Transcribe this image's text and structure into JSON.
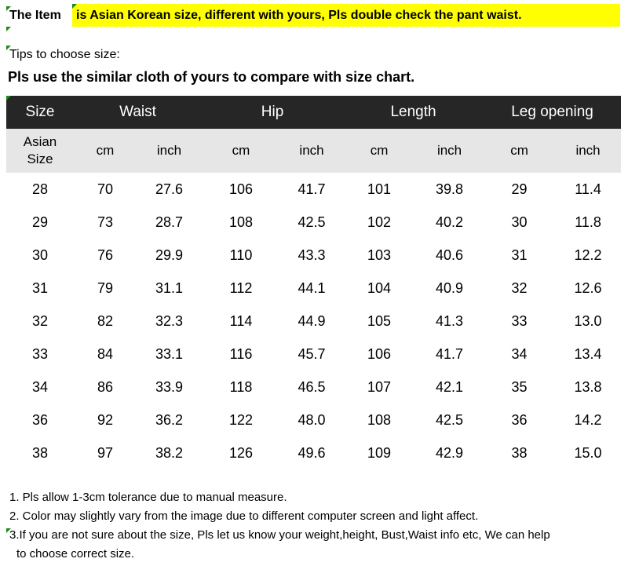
{
  "banner": {
    "label": "The Item",
    "note": "is Asian Korean size, different with yours, Pls double check the pant waist."
  },
  "tips": {
    "label": "Tips to choose size:",
    "main": "Pls use the similar cloth of yours to compare with size chart."
  },
  "table": {
    "headers": [
      "Size",
      "Waist",
      "Hip",
      "Length",
      "Leg opening"
    ],
    "subheaders": {
      "asian_size_line1": "Asian",
      "asian_size_line2": "Size",
      "cm": "cm",
      "inch": "inch"
    },
    "rows": [
      [
        "28",
        "70",
        "27.6",
        "106",
        "41.7",
        "101",
        "39.8",
        "29",
        "11.4"
      ],
      [
        "29",
        "73",
        "28.7",
        "108",
        "42.5",
        "102",
        "40.2",
        "30",
        "11.8"
      ],
      [
        "30",
        "76",
        "29.9",
        "110",
        "43.3",
        "103",
        "40.6",
        "31",
        "12.2"
      ],
      [
        "31",
        "79",
        "31.1",
        "112",
        "44.1",
        "104",
        "40.9",
        "32",
        "12.6"
      ],
      [
        "32",
        "82",
        "32.3",
        "114",
        "44.9",
        "105",
        "41.3",
        "33",
        "13.0"
      ],
      [
        "33",
        "84",
        "33.1",
        "116",
        "45.7",
        "106",
        "41.7",
        "34",
        "13.4"
      ],
      [
        "34",
        "86",
        "33.9",
        "118",
        "46.5",
        "107",
        "42.1",
        "35",
        "13.8"
      ],
      [
        "36",
        "92",
        "36.2",
        "122",
        "48.0",
        "108",
        "42.5",
        "36",
        "14.2"
      ],
      [
        "38",
        "97",
        "38.2",
        "126",
        "49.6",
        "109",
        "42.9",
        "38",
        "15.0"
      ]
    ]
  },
  "notes": {
    "n1": "1. Pls allow 1-3cm tolerance due to manual measure.",
    "n2": "2. Color may slightly vary from the image due to different computer screen and light affect.",
    "n3_line1": "3.If you are not sure about the size, Pls let us know your weight,height, Bust,Waist info etc, We can help",
    "n3_line2": "to choose correct size."
  },
  "colors": {
    "highlight": "#ffff00",
    "header_bg": "#262626",
    "subheader_bg": "#e6e6e6",
    "marker": "#1a8a1a"
  }
}
